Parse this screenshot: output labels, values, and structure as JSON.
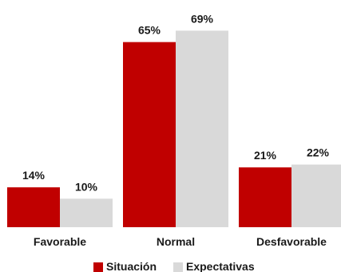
{
  "chart_data": {
    "type": "bar",
    "categories": [
      "Favorable",
      "Normal",
      "Desfavorable"
    ],
    "series": [
      {
        "name": "Situación",
        "values": [
          14,
          65,
          21
        ],
        "color": "#c00000"
      },
      {
        "name": "Expectativas",
        "values": [
          10,
          69,
          22
        ],
        "color": "#d9d9d9"
      }
    ],
    "data_labels": [
      [
        "14%",
        "65%",
        "21%"
      ],
      [
        "10%",
        "69%",
        "22%"
      ]
    ],
    "ylim": [
      0,
      75
    ],
    "grid": false,
    "legend": {
      "position": "bottom"
    },
    "title": "",
    "xlabel": "",
    "ylabel": ""
  }
}
